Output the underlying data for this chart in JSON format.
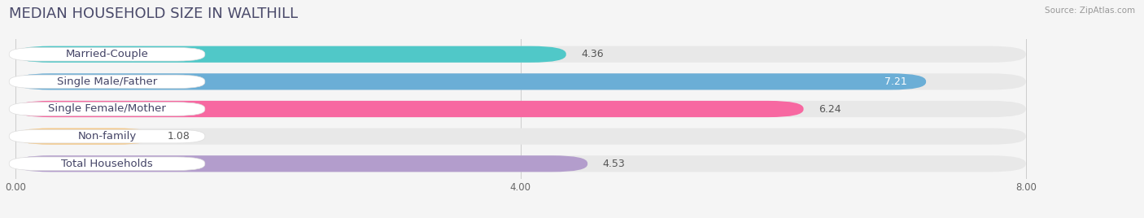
{
  "title": "MEDIAN HOUSEHOLD SIZE IN WALTHILL",
  "source": "Source: ZipAtlas.com",
  "categories": [
    "Married-Couple",
    "Single Male/Father",
    "Single Female/Mother",
    "Non-family",
    "Total Households"
  ],
  "values": [
    4.36,
    7.21,
    6.24,
    1.08,
    4.53
  ],
  "bar_colors": [
    "#50c8c8",
    "#6baed6",
    "#f768a1",
    "#f5c98a",
    "#b39dcc"
  ],
  "xlim_data": [
    0,
    8.0
  ],
  "xlim_plot": [
    -0.05,
    8.8
  ],
  "xticks": [
    0.0,
    4.0,
    8.0
  ],
  "xtick_labels": [
    "0.00",
    "4.00",
    "8.00"
  ],
  "background_color": "#f5f5f5",
  "bar_bg_color": "#e8e8e8",
  "label_bg_color": "#ffffff",
  "title_color": "#4a4a6a",
  "label_color": "#444466",
  "value_color": "#555555",
  "title_fontsize": 13,
  "label_fontsize": 9.5,
  "value_fontsize": 9
}
